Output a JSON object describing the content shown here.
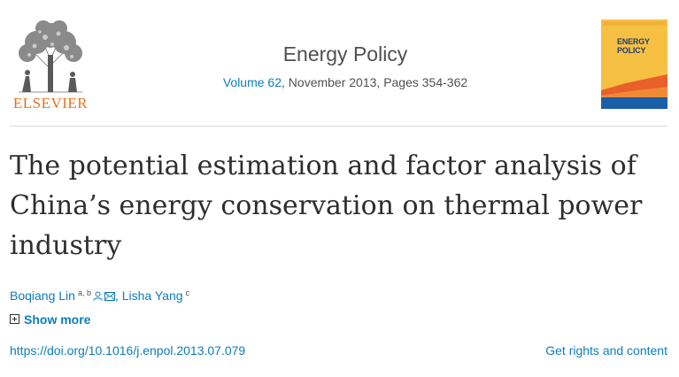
{
  "publisher": {
    "name": "ELSEVIER",
    "logo_icon": "elsevier-tree-icon",
    "accent_color": "#e9711c"
  },
  "journal": {
    "title": "Energy Policy",
    "volume_link": "Volume 62",
    "issue_details": ", November 2013, Pages 354-362",
    "cover_text": "ENERGY POLICY",
    "cover_colors": {
      "background": "#f6c043",
      "wave": "#e9602a",
      "base": "#1a5ea8"
    }
  },
  "article": {
    "title": "The potential estimation and factor analysis of China’s energy conservation on thermal power industry",
    "authors": [
      {
        "name": "Boqiang Lin",
        "affiliation": "a, b",
        "icons": [
          "person-icon",
          "email-icon"
        ]
      },
      {
        "name": "Lisha Yang",
        "affiliation": "c"
      }
    ],
    "author_separator": ",",
    "show_more_label": "Show more",
    "doi": "https://doi.org/10.1016/j.enpol.2013.07.079",
    "rights_label": "Get rights and content"
  },
  "colors": {
    "link": "#0c7dbb",
    "text": "#2e2e2e",
    "muted": "#505050"
  }
}
